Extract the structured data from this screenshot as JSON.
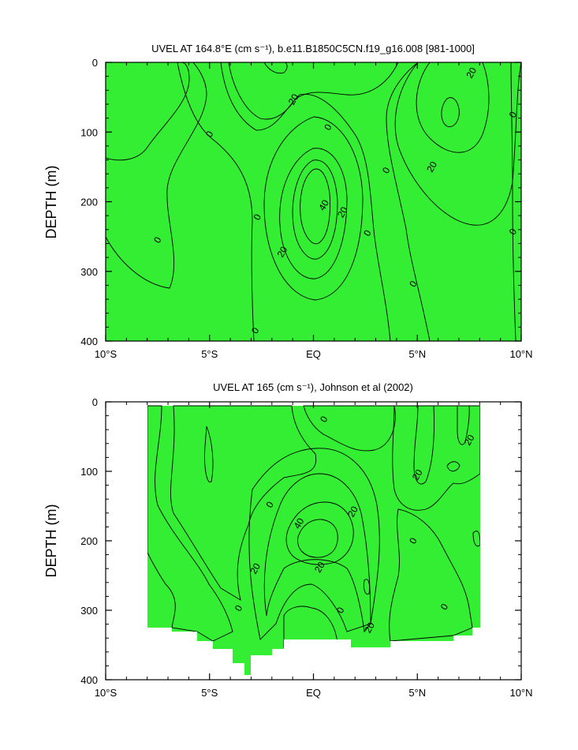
{
  "palette": {
    "neg20": "#33eeff",
    "neg": "#00ffdd",
    "zero_to_10": "#33ee33",
    "10_to_20": "#77ff00",
    "20_to_30": "#ffff00",
    "30_to_40": "#ffcc33",
    "40_to_50": "#ffaa33",
    "missing": "#ffffff"
  },
  "chart_data": [
    {
      "type": "heatmap",
      "title": "UVEL AT 164.8°E (cm s⁻¹), b.e11.B1850C5CN.f19_g16.008 [981-1000]",
      "ylabel": "DEPTH (m)",
      "xlabel": "",
      "xlim": [
        -10,
        10
      ],
      "ylim": [
        400,
        0
      ],
      "xticks": [
        -10,
        -5,
        0,
        5,
        10
      ],
      "xtick_labels": [
        "10°S",
        "5°S",
        "EQ",
        "5°N",
        "10°N"
      ],
      "yticks": [
        0,
        100,
        200,
        300,
        400
      ],
      "ytick_labels": [
        "0",
        "100",
        "200",
        "300",
        "400"
      ],
      "contour_labels": [
        {
          "text": "-20",
          "x": -1.0,
          "y": 55
        },
        {
          "text": "0",
          "x": -5.0,
          "y": 103
        },
        {
          "text": "0",
          "x": -7.5,
          "y": 255
        },
        {
          "text": "0",
          "x": -2.7,
          "y": 222
        },
        {
          "text": "0",
          "x": -2.8,
          "y": 385
        },
        {
          "text": "0",
          "x": 0.7,
          "y": 93
        },
        {
          "text": "40",
          "x": 0.5,
          "y": 205
        },
        {
          "text": "20",
          "x": 1.4,
          "y": 215
        },
        {
          "text": "20",
          "x": -1.5,
          "y": 272
        },
        {
          "text": "0",
          "x": 2.6,
          "y": 245
        },
        {
          "text": "0",
          "x": 3.5,
          "y": 155
        },
        {
          "text": "0",
          "x": 4.8,
          "y": 318
        },
        {
          "text": "20",
          "x": 7.6,
          "y": 15
        },
        {
          "text": "20",
          "x": 5.7,
          "y": 150
        },
        {
          "text": "0",
          "x": 9.6,
          "y": 75
        },
        {
          "text": "0",
          "x": 9.6,
          "y": 243
        }
      ]
    },
    {
      "type": "heatmap",
      "title": "UVEL AT 165 (cm s⁻¹), Johnson et al (2002)",
      "ylabel": "DEPTH (m)",
      "xlabel": "",
      "xlim": [
        -10,
        10
      ],
      "ylim": [
        400,
        0
      ],
      "xticks": [
        -10,
        -5,
        0,
        5,
        10
      ],
      "xtick_labels": [
        "10°S",
        "5°S",
        "EQ",
        "5°N",
        "10°N"
      ],
      "yticks": [
        0,
        100,
        200,
        300,
        400
      ],
      "ytick_labels": [
        "0",
        "100",
        "200",
        "300",
        "400"
      ],
      "data_coverage_x": [
        -8,
        8
      ],
      "contour_labels": [
        {
          "text": "0",
          "x": 0.5,
          "y": 25
        },
        {
          "text": "20",
          "x": 7.5,
          "y": 55
        },
        {
          "text": "20",
          "x": 5.0,
          "y": 105
        },
        {
          "text": "0",
          "x": -2.1,
          "y": 148
        },
        {
          "text": "20",
          "x": 1.9,
          "y": 158
        },
        {
          "text": "40",
          "x": -0.7,
          "y": 175
        },
        {
          "text": "0",
          "x": 4.8,
          "y": 200
        },
        {
          "text": "20",
          "x": -2.8,
          "y": 240
        },
        {
          "text": "20",
          "x": 0.3,
          "y": 238
        },
        {
          "text": "0",
          "x": -3.6,
          "y": 297
        },
        {
          "text": "0",
          "x": 1.3,
          "y": 300
        },
        {
          "text": "0",
          "x": 6.3,
          "y": 295
        },
        {
          "text": "20",
          "x": 2.7,
          "y": 325
        }
      ]
    }
  ]
}
